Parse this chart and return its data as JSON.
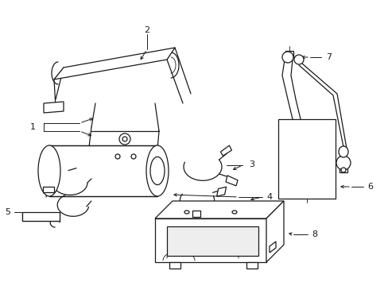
{
  "bg_color": "#ffffff",
  "lc": "#1a1a1a",
  "lw": 0.9,
  "tlw": 0.6,
  "fig_w": 4.89,
  "fig_h": 3.6,
  "dpi": 100,
  "label_fs": 7.5,
  "arrow_fs": 6
}
